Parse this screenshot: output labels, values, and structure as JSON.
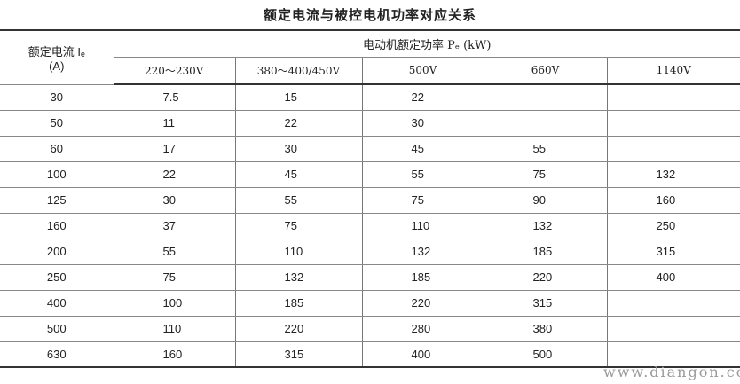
{
  "title": "额定电流与被控电机功率对应关系",
  "header": {
    "current_label": "额定电流 Iₑ",
    "current_unit": "(A)",
    "power_label": "电动机额定功率 Pₑ (kW)",
    "voltages": [
      "220～230V",
      "380～400/450V",
      "500V",
      "660V",
      "1140V"
    ]
  },
  "rows": [
    [
      "30",
      "7.5",
      "15",
      "22",
      "",
      ""
    ],
    [
      "50",
      "11",
      "22",
      "30",
      "",
      ""
    ],
    [
      "60",
      "17",
      "30",
      "45",
      "55",
      ""
    ],
    [
      "100",
      "22",
      "45",
      "55",
      "75",
      "132"
    ],
    [
      "125",
      "30",
      "55",
      "75",
      "90",
      "160"
    ],
    [
      "160",
      "37",
      "75",
      "110",
      "132",
      "250"
    ],
    [
      "200",
      "55",
      "110",
      "132",
      "185",
      "315"
    ],
    [
      "250",
      "75",
      "132",
      "185",
      "220",
      "400"
    ],
    [
      "400",
      "100",
      "185",
      "220",
      "315",
      ""
    ],
    [
      "500",
      "110",
      "220",
      "280",
      "380",
      ""
    ],
    [
      "630",
      "160",
      "315",
      "400",
      "500",
      ""
    ]
  ],
  "watermark": "www.diangon.com"
}
